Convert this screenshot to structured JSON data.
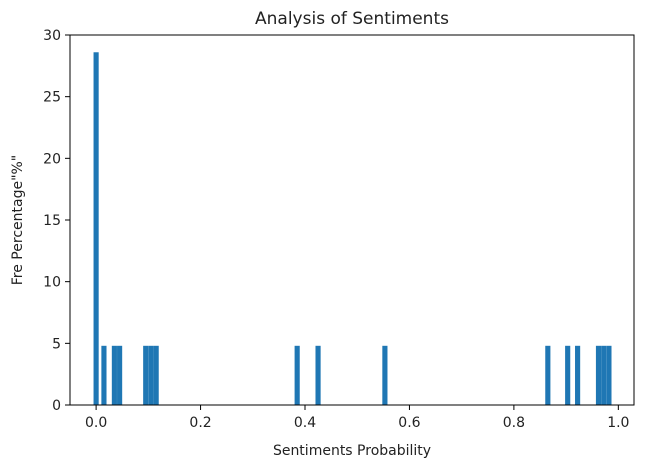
{
  "chart_data": {
    "type": "bar",
    "title": "Analysis of Sentiments",
    "xlabel": "Sentiments Probability",
    "ylabel": "Fre Percentage\"%\"",
    "xlim": [
      -0.05,
      1.03
    ],
    "ylim": [
      0,
      30
    ],
    "xticks": [
      0.0,
      0.2,
      0.4,
      0.6,
      0.8,
      1.0
    ],
    "xtick_labels": [
      "0.0",
      "0.2",
      "0.4",
      "0.6",
      "0.8",
      "1.0"
    ],
    "yticks": [
      0,
      5,
      10,
      15,
      20,
      25,
      30
    ],
    "ytick_labels": [
      "0",
      "5",
      "10",
      "15",
      "20",
      "25",
      "30"
    ],
    "bin_width": 0.00985,
    "color": "#1f77b4",
    "grid": false,
    "series": [
      {
        "x": [
          0.0,
          0.015,
          0.035,
          0.045,
          0.095,
          0.105,
          0.115,
          0.385,
          0.425,
          0.553,
          0.865,
          0.903,
          0.922,
          0.962,
          0.972,
          0.982
        ],
        "values": [
          28.6,
          4.8,
          4.8,
          4.8,
          4.8,
          4.8,
          4.8,
          4.8,
          4.8,
          4.8,
          4.8,
          4.8,
          4.8,
          4.8,
          4.8,
          4.8
        ]
      }
    ]
  }
}
